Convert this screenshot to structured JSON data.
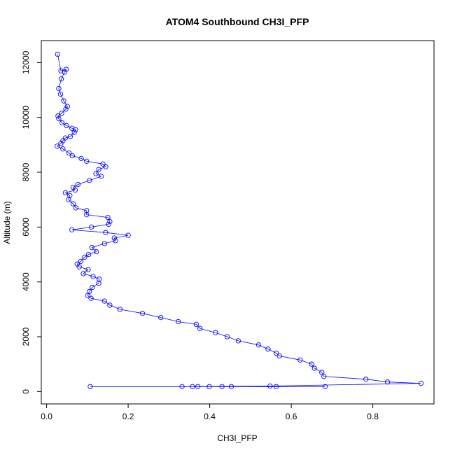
{
  "chart_data": {
    "type": "line",
    "title": "ATOM4 Southbound CH3I_PFP",
    "xlabel": "CH3I_PFP",
    "ylabel": "Altitude (m)",
    "xlim": [
      0,
      0.95
    ],
    "ylim": [
      0,
      12600
    ],
    "xticks": [
      0.0,
      0.2,
      0.4,
      0.6,
      0.8
    ],
    "xtick_labels": [
      "0.0",
      "0.2",
      "0.4",
      "0.6",
      "0.8"
    ],
    "yticks": [
      0,
      2000,
      4000,
      6000,
      8000,
      10000,
      12000
    ],
    "ytick_labels": [
      "0",
      "2000",
      "4000",
      "6000",
      "8000",
      "10000",
      "12000"
    ],
    "grid": false,
    "line_color": "#0000ff",
    "marker": "open-circle",
    "series": [
      {
        "x": [
          0.027,
          0.035,
          0.048,
          0.044,
          0.036,
          0.03,
          0.034,
          0.042,
          0.051,
          0.047,
          0.037,
          0.028,
          0.03,
          0.038,
          0.049,
          0.062,
          0.071,
          0.068,
          0.058,
          0.046,
          0.04,
          0.035,
          0.026,
          0.04,
          0.055,
          0.063,
          0.085,
          0.098,
          0.138,
          0.145,
          0.128,
          0.121,
          0.134,
          0.105,
          0.077,
          0.065,
          0.07,
          0.046,
          0.057,
          0.054,
          0.065,
          0.072,
          0.098,
          0.098,
          0.15,
          0.155,
          0.152,
          0.11,
          0.062,
          0.145,
          0.2,
          0.166,
          0.169,
          0.142,
          0.111,
          0.122,
          0.103,
          0.093,
          0.084,
          0.075,
          0.08,
          0.102,
          0.09,
          0.114,
          0.129,
          0.128,
          0.112,
          0.105,
          0.101,
          0.109,
          0.142,
          0.155,
          0.18,
          0.235,
          0.28,
          0.323,
          0.367,
          0.376,
          0.414,
          0.443,
          0.47,
          0.52,
          0.543,
          0.563,
          0.571,
          0.622,
          0.65,
          0.657,
          0.675,
          0.68,
          0.783,
          0.836,
          0.918,
          0.548,
          0.332,
          0.453,
          0.563,
          0.399,
          0.358,
          0.43,
          0.683,
          0.371,
          0.107
        ],
        "y": [
          12300,
          11700,
          11750,
          11650,
          11400,
          11050,
          10850,
          10600,
          10400,
          10300,
          10150,
          10050,
          9950,
          9800,
          9700,
          9600,
          9550,
          9450,
          9300,
          9250,
          9150,
          9050,
          8950,
          8850,
          8700,
          8600,
          8500,
          8400,
          8300,
          8200,
          8100,
          7950,
          7850,
          7700,
          7550,
          7450,
          7350,
          7250,
          7150,
          7000,
          6850,
          6700,
          6600,
          6450,
          6350,
          6200,
          6100,
          6000,
          5900,
          5800,
          5700,
          5600,
          5500,
          5400,
          5250,
          5100,
          5000,
          4900,
          4750,
          4650,
          4550,
          4450,
          4300,
          4200,
          4100,
          3950,
          3800,
          3650,
          3500,
          3400,
          3300,
          3150,
          3000,
          2850,
          2700,
          2550,
          2450,
          2300,
          2150,
          2000,
          1850,
          1700,
          1550,
          1400,
          1300,
          1150,
          1000,
          850,
          700,
          550,
          450,
          350,
          300,
          200,
          180,
          180,
          180,
          180,
          180,
          180,
          180,
          180,
          180
        ]
      }
    ]
  }
}
